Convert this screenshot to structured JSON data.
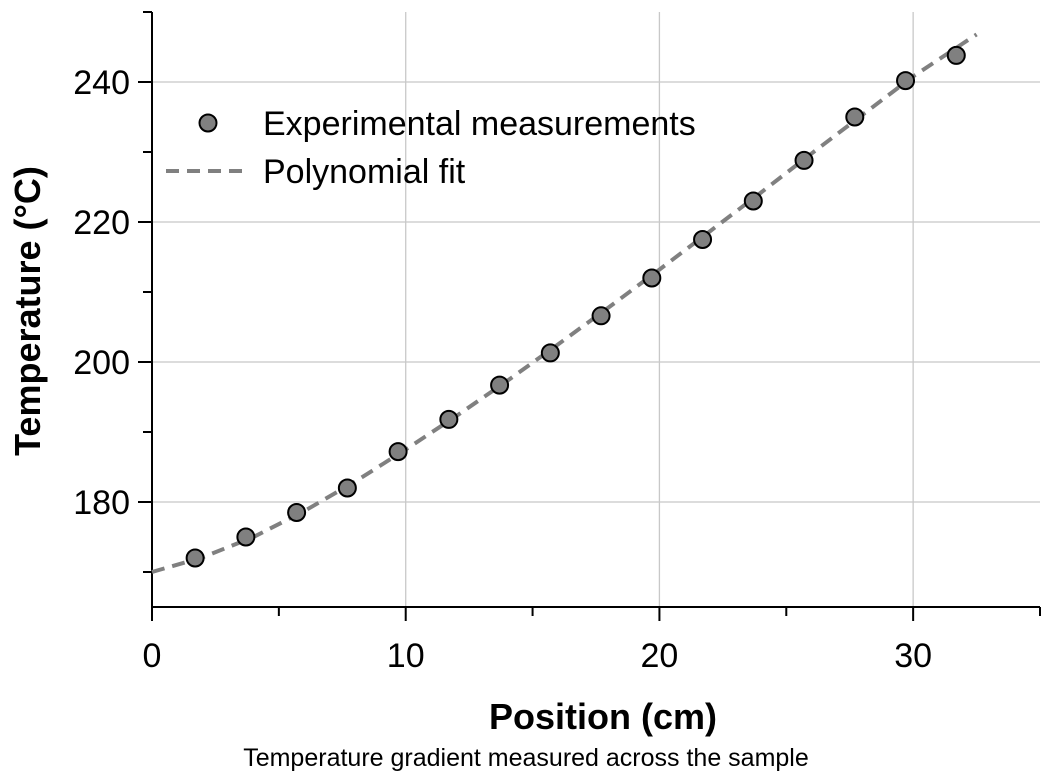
{
  "chart_data": {
    "type": "scatter",
    "caption": "Temperature gradient measured across the sample",
    "xlabel": "Position (cm)",
    "ylabel": "Temperature (°C)",
    "xlim": [
      0,
      35
    ],
    "ylim": [
      165,
      250
    ],
    "x_ticks": [
      0,
      10,
      20,
      30
    ],
    "y_ticks": [
      180,
      200,
      220,
      240
    ],
    "x_minor_step": 5,
    "y_minor_step": 10,
    "grid": true,
    "legend_position": "top-left",
    "series": [
      {
        "name": "Experimental measurements",
        "kind": "scatter",
        "color": "#808080",
        "x": [
          1.7,
          3.7,
          5.7,
          7.7,
          9.7,
          11.7,
          13.7,
          15.7,
          17.7,
          19.7,
          21.7,
          23.7,
          25.7,
          27.7,
          29.7,
          31.7
        ],
        "y": [
          172.0,
          175.0,
          178.5,
          182.0,
          187.2,
          191.8,
          196.7,
          201.3,
          206.6,
          212.0,
          217.5,
          223.0,
          228.8,
          235.0,
          240.2,
          243.8
        ]
      },
      {
        "name": "Polynomial fit",
        "kind": "line",
        "style": "dashed",
        "color": "#808080",
        "x": [
          0,
          2,
          4,
          6,
          8,
          10,
          12,
          14,
          16,
          18,
          20,
          22,
          24,
          26,
          28,
          30,
          32.5
        ],
        "y": [
          170.0,
          172.1,
          175.0,
          178.7,
          182.9,
          187.5,
          192.3,
          197.3,
          202.5,
          207.8,
          213.2,
          218.7,
          224.2,
          229.8,
          235.3,
          240.8,
          246.8
        ]
      }
    ]
  }
}
